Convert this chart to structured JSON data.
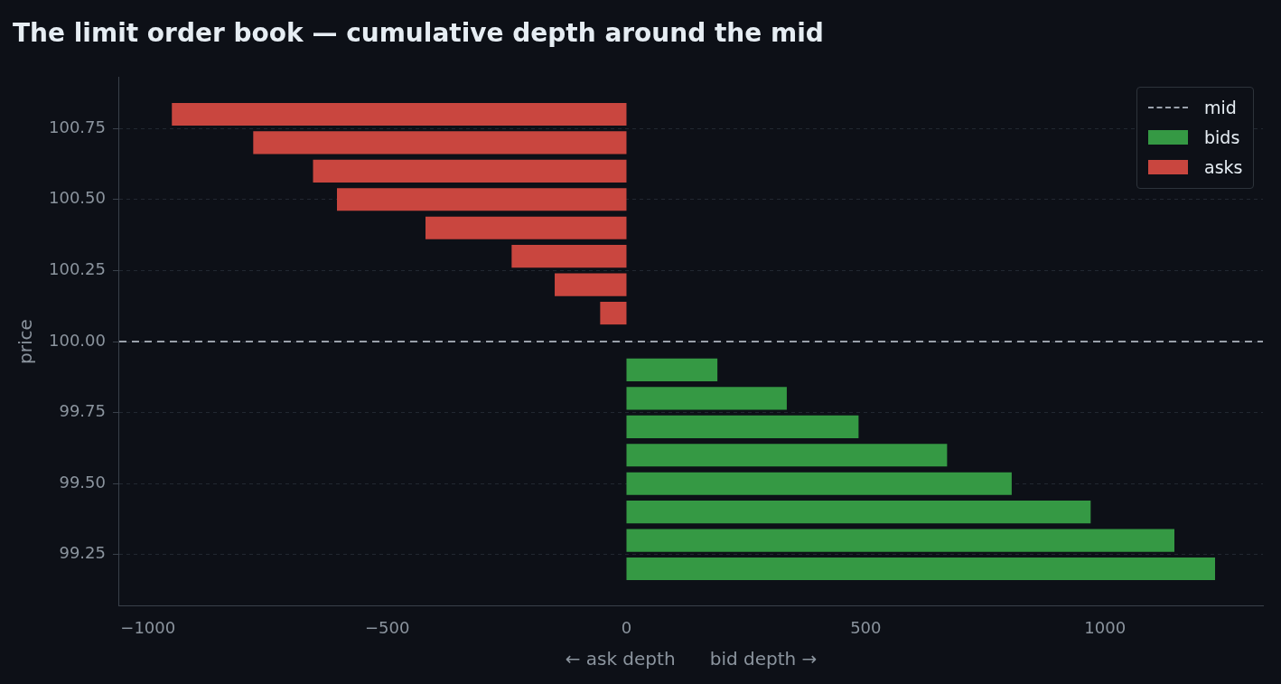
{
  "chart_data": {
    "type": "bar",
    "orientation": "horizontal",
    "title": "The limit order book — cumulative depth around the mid",
    "xlabel": "← ask depth      bid depth →",
    "ylabel": "price",
    "series": [
      {
        "name": "bids",
        "color": "#359944",
        "x": [
          99.9,
          99.8,
          99.7,
          99.6,
          99.5,
          99.4,
          99.3,
          99.2
        ],
        "values": [
          190,
          335,
          485,
          670,
          805,
          970,
          1145,
          1230
        ]
      },
      {
        "name": "asks",
        "color": "#c9463f",
        "x": [
          100.1,
          100.2,
          100.3,
          100.4,
          100.5,
          100.6,
          100.7,
          100.8
        ],
        "values": [
          -55,
          -150,
          -240,
          -420,
          -605,
          -655,
          -780,
          -950
        ]
      }
    ],
    "xlim": [
      -1060,
      1330
    ],
    "xticks": [
      {
        "value": -1000,
        "label": "−1000"
      },
      {
        "value": -500,
        "label": "−500"
      },
      0,
      500,
      1000
    ],
    "ylim": [
      99.07,
      100.93
    ],
    "yticks": [
      {
        "value": 99.25,
        "label": "99.25"
      },
      {
        "value": 99.5,
        "label": "99.50"
      },
      {
        "value": 99.75,
        "label": "99.75"
      },
      {
        "value": 100,
        "label": "100.00"
      },
      {
        "value": 100.25,
        "label": "100.25"
      },
      {
        "value": 100.5,
        "label": "100.50"
      },
      {
        "value": 100.75,
        "label": "100.75"
      }
    ],
    "ref_lines": [
      {
        "axis": "y",
        "value": 100,
        "label": "mid",
        "color": "#9aa1ab",
        "line_style": "dashed"
      }
    ],
    "grid": "y",
    "legend": "top right"
  }
}
